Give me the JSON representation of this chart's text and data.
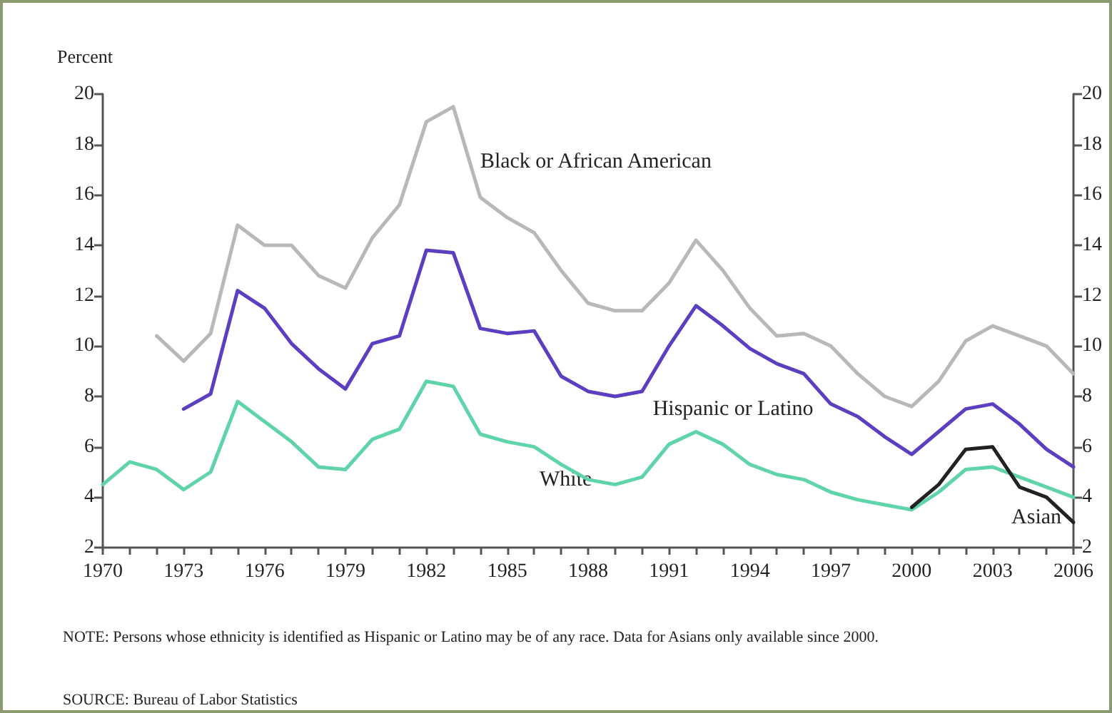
{
  "chart_data": {
    "type": "line",
    "ylabel": "Percent",
    "x": [
      1970,
      1971,
      1972,
      1973,
      1974,
      1975,
      1976,
      1977,
      1978,
      1979,
      1980,
      1981,
      1982,
      1983,
      1984,
      1985,
      1986,
      1987,
      1988,
      1989,
      1990,
      1991,
      1992,
      1993,
      1994,
      1995,
      1996,
      1997,
      1998,
      1999,
      2000,
      2001,
      2002,
      2003,
      2004,
      2005,
      2006
    ],
    "series": [
      {
        "name": "Black or African American",
        "color": "#b8b8b8",
        "values": [
          null,
          null,
          10.4,
          9.4,
          10.5,
          14.8,
          14.0,
          14.0,
          12.8,
          12.3,
          14.3,
          15.6,
          18.9,
          19.5,
          15.9,
          15.1,
          14.5,
          13.0,
          11.7,
          11.4,
          11.4,
          12.5,
          14.2,
          13.0,
          11.5,
          10.4,
          10.5,
          10.0,
          8.9,
          8.0,
          7.6,
          8.6,
          10.2,
          10.8,
          10.4,
          10.0,
          8.9
        ]
      },
      {
        "name": "Hispanic or Latino",
        "color": "#5b3fc0",
        "values": [
          null,
          null,
          null,
          7.5,
          8.1,
          12.2,
          11.5,
          10.1,
          9.1,
          8.3,
          10.1,
          10.4,
          13.8,
          13.7,
          10.7,
          10.5,
          10.6,
          8.8,
          8.2,
          8.0,
          8.2,
          10.0,
          11.6,
          10.8,
          9.9,
          9.3,
          8.9,
          7.7,
          7.2,
          6.4,
          5.7,
          6.6,
          7.5,
          7.7,
          6.9,
          5.9,
          5.2
        ]
      },
      {
        "name": "White",
        "color": "#5fd4a8",
        "values": [
          4.5,
          5.4,
          5.1,
          4.3,
          5.0,
          7.8,
          7.0,
          6.2,
          5.2,
          5.1,
          6.3,
          6.7,
          8.6,
          8.4,
          6.5,
          6.2,
          6.0,
          5.3,
          4.7,
          4.5,
          4.8,
          6.1,
          6.6,
          6.1,
          5.3,
          4.9,
          4.7,
          4.2,
          3.9,
          3.7,
          3.5,
          4.2,
          5.1,
          5.2,
          4.8,
          4.4,
          4.0
        ]
      },
      {
        "name": "Asian",
        "color": "#222222",
        "values": [
          null,
          null,
          null,
          null,
          null,
          null,
          null,
          null,
          null,
          null,
          null,
          null,
          null,
          null,
          null,
          null,
          null,
          null,
          null,
          null,
          null,
          null,
          null,
          null,
          null,
          null,
          null,
          null,
          null,
          null,
          3.6,
          4.5,
          5.9,
          6.0,
          4.4,
          4.0,
          3.0
        ]
      }
    ],
    "xlim": [
      1970,
      2006
    ],
    "xticks": [
      1970,
      {
        "value": 1971,
        "label": null
      },
      {
        "value": 1972,
        "label": null
      },
      1973,
      {
        "value": 1974,
        "label": null
      },
      {
        "value": 1975,
        "label": null
      },
      1976,
      {
        "value": 1977,
        "label": null
      },
      {
        "value": 1978,
        "label": null
      },
      1979,
      {
        "value": 1980,
        "label": null
      },
      {
        "value": 1981,
        "label": null
      },
      1982,
      {
        "value": 1983,
        "label": null
      },
      {
        "value": 1984,
        "label": null
      },
      1985,
      {
        "value": 1986,
        "label": null
      },
      {
        "value": 1987,
        "label": null
      },
      1988,
      {
        "value": 1989,
        "label": null
      },
      {
        "value": 1990,
        "label": null
      },
      1991,
      {
        "value": 1992,
        "label": null
      },
      {
        "value": 1993,
        "label": null
      },
      1994,
      {
        "value": 1995,
        "label": null
      },
      {
        "value": 1996,
        "label": null
      },
      1997,
      {
        "value": 1998,
        "label": null
      },
      {
        "value": 1999,
        "label": null
      },
      2000,
      {
        "value": 2001,
        "label": null
      },
      {
        "value": 2002,
        "label": null
      },
      2003,
      {
        "value": 2004,
        "label": null
      },
      {
        "value": 2005,
        "label": null
      },
      2006
    ],
    "ylim": [
      2,
      20
    ],
    "yticks": [
      2,
      4,
      6,
      8,
      10,
      12,
      14,
      16,
      18,
      20
    ],
    "y2lim": [
      2,
      20
    ],
    "y2ticks": [
      2,
      4,
      6,
      8,
      10,
      12,
      14,
      16,
      18,
      20
    ],
    "grid": false,
    "legend": false,
    "marker": "none",
    "line_style": "solid",
    "annotations": [
      "NOTE:  Persons whose ethnicity is identified as Hispanic or Latino may be of any race.  Data for Asians only available since 2000.",
      "SOURCE:  Bureau of Labor Statistics"
    ]
  }
}
